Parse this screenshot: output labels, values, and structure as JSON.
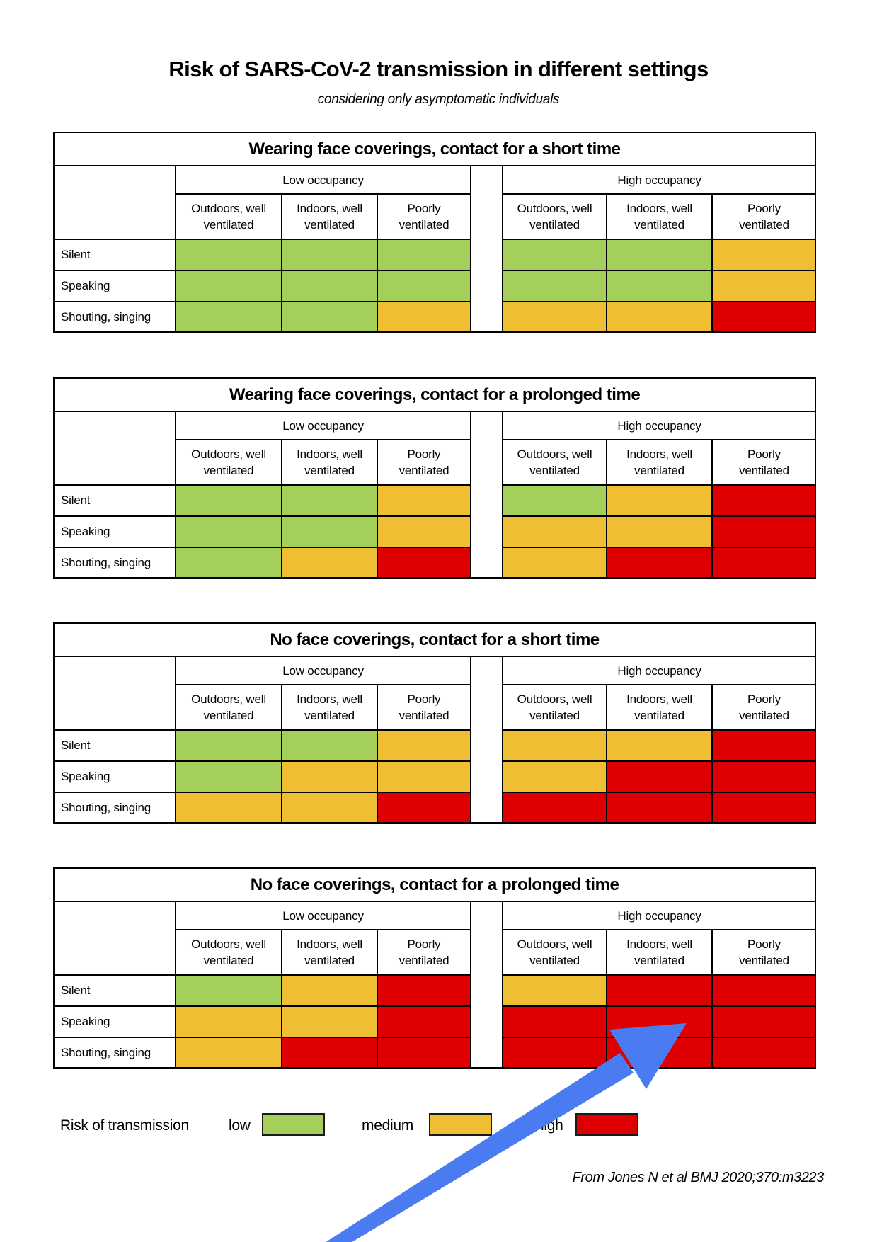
{
  "header": {
    "title": "Risk of SARS-CoV-2 transmission in different settings",
    "subtitle": "considering only asymptomatic individuals"
  },
  "colors": {
    "low": "#A5CF5B",
    "medium": "#F0BE32",
    "high": "#DE0000",
    "arrow": "#4A7BF0"
  },
  "chart_data": {
    "type": "heatmap",
    "title": "Risk of SARS-CoV-2 transmission in different settings",
    "subtitle": "considering only asymptomatic individuals",
    "occupancy_groups": [
      "Low occupancy",
      "High occupancy"
    ],
    "columns": [
      {
        "line1": "Outdoors, well",
        "line2": "ventilated"
      },
      {
        "line1": "Indoors, well",
        "line2": "ventilated"
      },
      {
        "line1": "Poorly",
        "line2": "ventilated"
      }
    ],
    "rows": [
      "Silent",
      "Speaking",
      "Shouting, singing"
    ],
    "levels": [
      "low",
      "medium",
      "high"
    ],
    "panels": [
      {
        "title": "Wearing face coverings, contact for a short time",
        "values": [
          [
            "low",
            "low",
            "low",
            "low",
            "low",
            "medium"
          ],
          [
            "low",
            "low",
            "low",
            "low",
            "low",
            "medium"
          ],
          [
            "low",
            "low",
            "medium",
            "medium",
            "medium",
            "high"
          ]
        ]
      },
      {
        "title": "Wearing face coverings, contact for a prolonged time",
        "values": [
          [
            "low",
            "low",
            "medium",
            "low",
            "medium",
            "high"
          ],
          [
            "low",
            "low",
            "medium",
            "medium",
            "medium",
            "high"
          ],
          [
            "low",
            "medium",
            "high",
            "medium",
            "high",
            "high"
          ]
        ]
      },
      {
        "title": "No face coverings, contact for a short time",
        "values": [
          [
            "low",
            "low",
            "medium",
            "medium",
            "medium",
            "high"
          ],
          [
            "low",
            "medium",
            "medium",
            "medium",
            "high",
            "high"
          ],
          [
            "medium",
            "medium",
            "high",
            "high",
            "high",
            "high"
          ]
        ]
      },
      {
        "title": "No face coverings, contact for a prolonged time",
        "values": [
          [
            "low",
            "medium",
            "high",
            "medium",
            "high",
            "high"
          ],
          [
            "medium",
            "medium",
            "high",
            "high",
            "high",
            "high"
          ],
          [
            "medium",
            "high",
            "high",
            "high",
            "high",
            "high"
          ]
        ]
      }
    ]
  },
  "legend": {
    "title": "Risk of transmission",
    "items": [
      {
        "label": "low",
        "level": "low"
      },
      {
        "label": "medium",
        "level": "medium"
      },
      {
        "label": "high",
        "level": "high"
      }
    ]
  },
  "citation": "From Jones N et al BMJ 2020;370:m3223",
  "annotation": {
    "arrow_icon": "arrow-up-right-icon"
  }
}
